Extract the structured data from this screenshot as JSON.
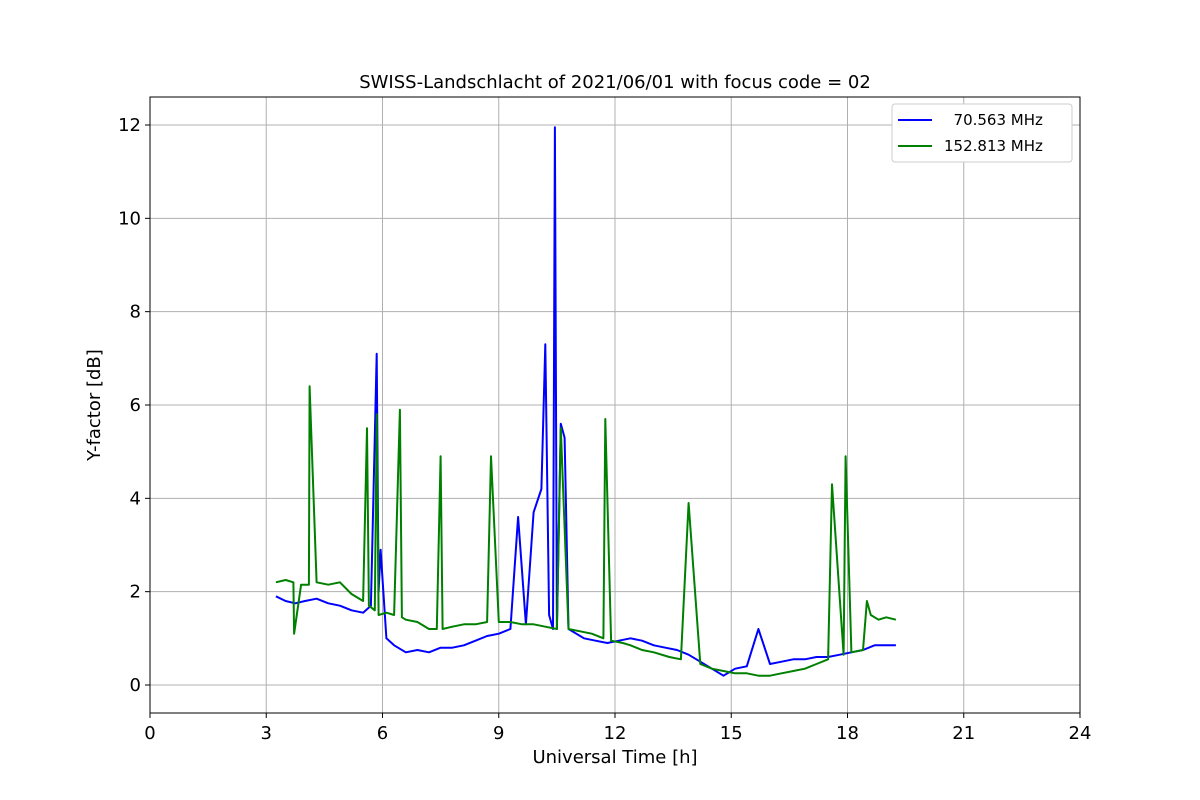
{
  "chart_data": {
    "type": "line",
    "title": "SWISS-Landschlacht of 2021/06/01 with focus code = 02",
    "xlabel": "Universal Time [h]",
    "ylabel": "Y-factor [dB]",
    "xlim": [
      0,
      24
    ],
    "ylim": [
      -0.6,
      12.6
    ],
    "xticks": [
      0,
      3,
      6,
      9,
      12,
      15,
      18,
      21,
      24
    ],
    "yticks": [
      0,
      2,
      4,
      6,
      8,
      10,
      12
    ],
    "grid": true,
    "legend_position": "top-right",
    "series": [
      {
        "name": "  70.563 MHz",
        "color": "#0000ff",
        "x": [
          3.25,
          3.5,
          3.75,
          4.0,
          4.3,
          4.6,
          4.9,
          5.2,
          5.5,
          5.7,
          5.85,
          5.9,
          5.95,
          6.1,
          6.3,
          6.6,
          6.9,
          7.2,
          7.5,
          7.8,
          8.1,
          8.4,
          8.7,
          9.0,
          9.3,
          9.5,
          9.7,
          9.9,
          10.1,
          10.2,
          10.3,
          10.4,
          10.45,
          10.5,
          10.6,
          10.7,
          10.8,
          11.0,
          11.2,
          11.5,
          11.8,
          12.1,
          12.4,
          12.7,
          13.0,
          13.3,
          13.6,
          13.9,
          14.2,
          14.5,
          14.8,
          15.1,
          15.4,
          15.7,
          16.0,
          16.3,
          16.6,
          16.9,
          17.2,
          17.5,
          17.8,
          18.1,
          18.4,
          18.7,
          19.0,
          19.25
        ],
        "y": [
          1.9,
          1.8,
          1.75,
          1.8,
          1.85,
          1.75,
          1.7,
          1.6,
          1.55,
          1.7,
          7.1,
          2.0,
          2.9,
          1.0,
          0.85,
          0.7,
          0.75,
          0.7,
          0.8,
          0.8,
          0.85,
          0.95,
          1.05,
          1.1,
          1.2,
          3.6,
          1.3,
          3.7,
          4.2,
          7.3,
          1.5,
          1.2,
          11.95,
          1.2,
          5.6,
          5.3,
          1.2,
          1.1,
          1.0,
          0.95,
          0.9,
          0.95,
          1.0,
          0.95,
          0.85,
          0.8,
          0.75,
          0.65,
          0.5,
          0.35,
          0.2,
          0.35,
          0.4,
          1.2,
          0.45,
          0.5,
          0.55,
          0.55,
          0.6,
          0.6,
          0.65,
          0.7,
          0.75,
          0.85,
          0.85,
          0.85
        ]
      },
      {
        "name": "152.813 MHz",
        "color": "#008000",
        "x": [
          3.25,
          3.5,
          3.7,
          3.72,
          3.9,
          4.1,
          4.12,
          4.3,
          4.6,
          4.9,
          5.2,
          5.5,
          5.6,
          5.65,
          5.8,
          5.85,
          5.9,
          6.1,
          6.3,
          6.45,
          6.5,
          6.6,
          6.9,
          7.2,
          7.4,
          7.5,
          7.55,
          7.8,
          8.1,
          8.4,
          8.7,
          8.8,
          9.0,
          9.3,
          9.6,
          9.9,
          10.2,
          10.5,
          10.6,
          10.8,
          11.1,
          11.4,
          11.7,
          11.75,
          11.9,
          12.2,
          12.4,
          12.7,
          13.0,
          13.4,
          13.7,
          13.9,
          14.2,
          14.5,
          14.8,
          15.1,
          15.4,
          15.7,
          16.0,
          16.3,
          16.6,
          16.9,
          17.2,
          17.5,
          17.6,
          17.9,
          17.95,
          18.1,
          18.4,
          18.5,
          18.6,
          18.8,
          19.0,
          19.25
        ],
        "y": [
          2.2,
          2.25,
          2.2,
          1.1,
          2.15,
          2.15,
          6.4,
          2.2,
          2.15,
          2.2,
          1.95,
          1.8,
          5.5,
          1.7,
          1.6,
          5.8,
          1.5,
          1.55,
          1.5,
          5.9,
          1.45,
          1.4,
          1.35,
          1.2,
          1.2,
          4.9,
          1.2,
          1.25,
          1.3,
          1.3,
          1.35,
          4.9,
          1.35,
          1.35,
          1.3,
          1.3,
          1.25,
          1.2,
          5.5,
          1.2,
          1.15,
          1.1,
          1.0,
          5.7,
          0.95,
          0.9,
          0.85,
          0.75,
          0.7,
          0.6,
          0.55,
          3.9,
          0.45,
          0.35,
          0.3,
          0.25,
          0.25,
          0.2,
          0.2,
          0.25,
          0.3,
          0.35,
          0.45,
          0.55,
          4.3,
          0.65,
          4.9,
          0.7,
          0.75,
          1.8,
          1.5,
          1.4,
          1.45,
          1.4
        ]
      }
    ]
  }
}
